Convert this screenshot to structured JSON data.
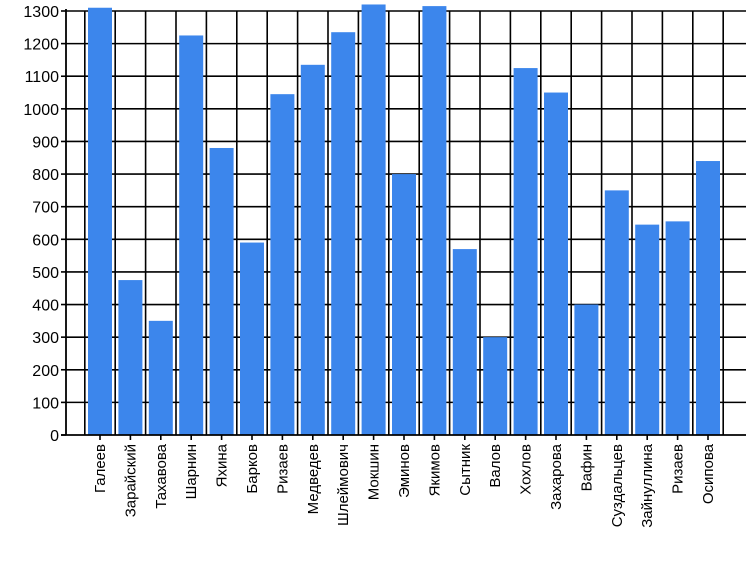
{
  "chart_data": {
    "type": "bar",
    "title": "",
    "xlabel": "",
    "ylabel": "",
    "ylim": [
      0,
      1300
    ],
    "ytick_step": 100,
    "grid": true,
    "bar_color": "#3c86ec",
    "categories": [
      "Галеев",
      "Зарайский",
      "Тахавова",
      "Шарнин",
      "Яхина",
      "Барков",
      "Ризаев",
      "Медведев",
      "Шлеймович",
      "Мокшин",
      "Эминов",
      "Якимов",
      "Сытник",
      "Валов",
      "Хохлов",
      "Захарова",
      "Вафин",
      "Суздальцев",
      "Зайнуллина",
      "Ризаев",
      "Осипова"
    ],
    "values": [
      1310,
      475,
      350,
      1225,
      880,
      590,
      1045,
      1135,
      1235,
      1320,
      800,
      1315,
      570,
      300,
      1125,
      1050,
      400,
      750,
      645,
      655,
      840
    ]
  }
}
